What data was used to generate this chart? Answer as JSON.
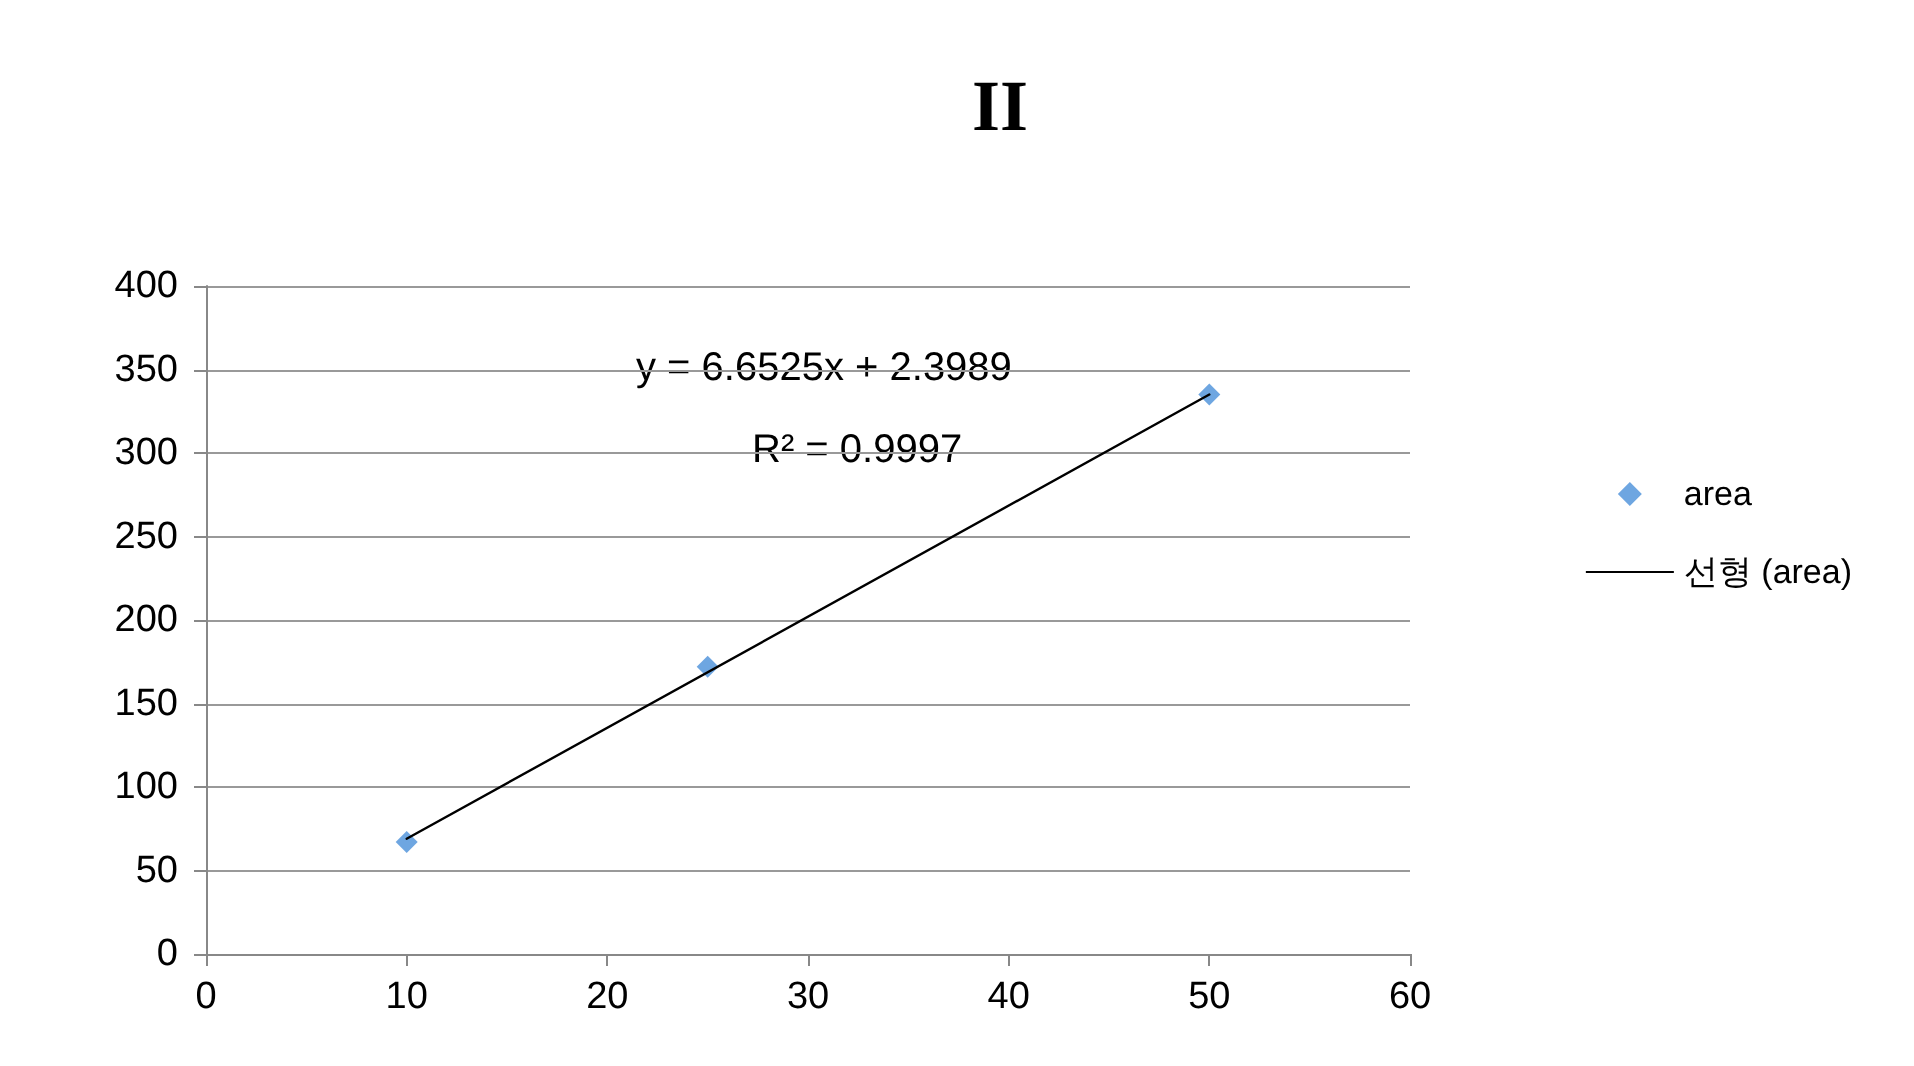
{
  "chart_data": {
    "type": "scatter",
    "title": "II",
    "series": [
      {
        "name": "area",
        "color": "#4a90d9",
        "marker": "diamond",
        "x": [
          10,
          25,
          50
        ],
        "values": [
          67,
          172,
          335
        ]
      },
      {
        "name": "선형 (area)",
        "type": "line",
        "color": "#000000",
        "marker": "none",
        "line_style": "solid",
        "x": [
          10,
          50
        ],
        "values": [
          69,
          335
        ]
      }
    ],
    "annotations": [
      "y = 6.6525x + 2.3989",
      "R² = 0.9997"
    ],
    "xlim": [
      0,
      60
    ],
    "xticks": [
      0,
      10,
      20,
      30,
      40,
      50,
      60
    ],
    "ylim": [
      0,
      400
    ],
    "yticks": [
      0,
      50,
      100,
      150,
      200,
      250,
      300,
      350,
      400
    ],
    "grid": "y",
    "legend": "right"
  }
}
